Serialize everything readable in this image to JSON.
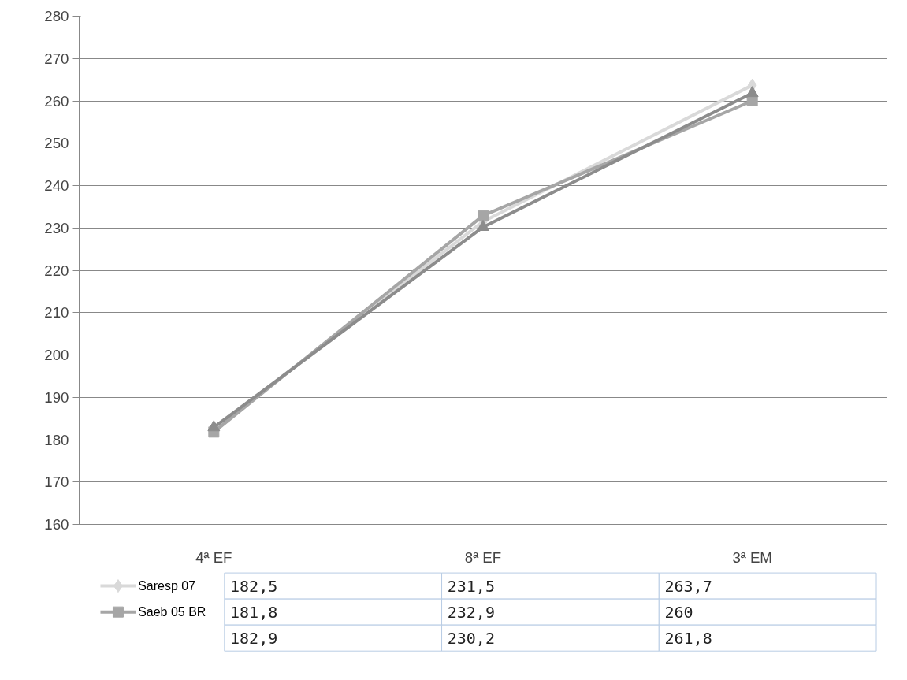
{
  "chart_data": {
    "type": "line",
    "categories": [
      "4ª EF",
      "8ª EF",
      "3ª EM"
    ],
    "series": [
      {
        "name": "Saresp 07",
        "color": "#d9d9d9",
        "marker": "diamond",
        "values": [
          182.5,
          231.5,
          263.7
        ],
        "value_labels": [
          "182,5",
          "231,5",
          "263,7"
        ]
      },
      {
        "name": "Saeb 05 BR",
        "color": "#a6a6a6",
        "marker": "square",
        "values": [
          181.8,
          232.9,
          260
        ],
        "value_labels": [
          "181,8",
          "232,9",
          "260"
        ]
      },
      {
        "color": "#8c8c8c",
        "marker": "triangle",
        "values": [
          182.9,
          230.2,
          261.8
        ],
        "value_labels": [
          "182,9",
          "230,2",
          "261,8"
        ]
      }
    ],
    "ylim": [
      160,
      280
    ],
    "yticks": [
      160,
      170,
      180,
      190,
      200,
      210,
      220,
      230,
      240,
      250,
      260,
      270,
      280
    ],
    "grid": "y",
    "legend": "bottom"
  }
}
